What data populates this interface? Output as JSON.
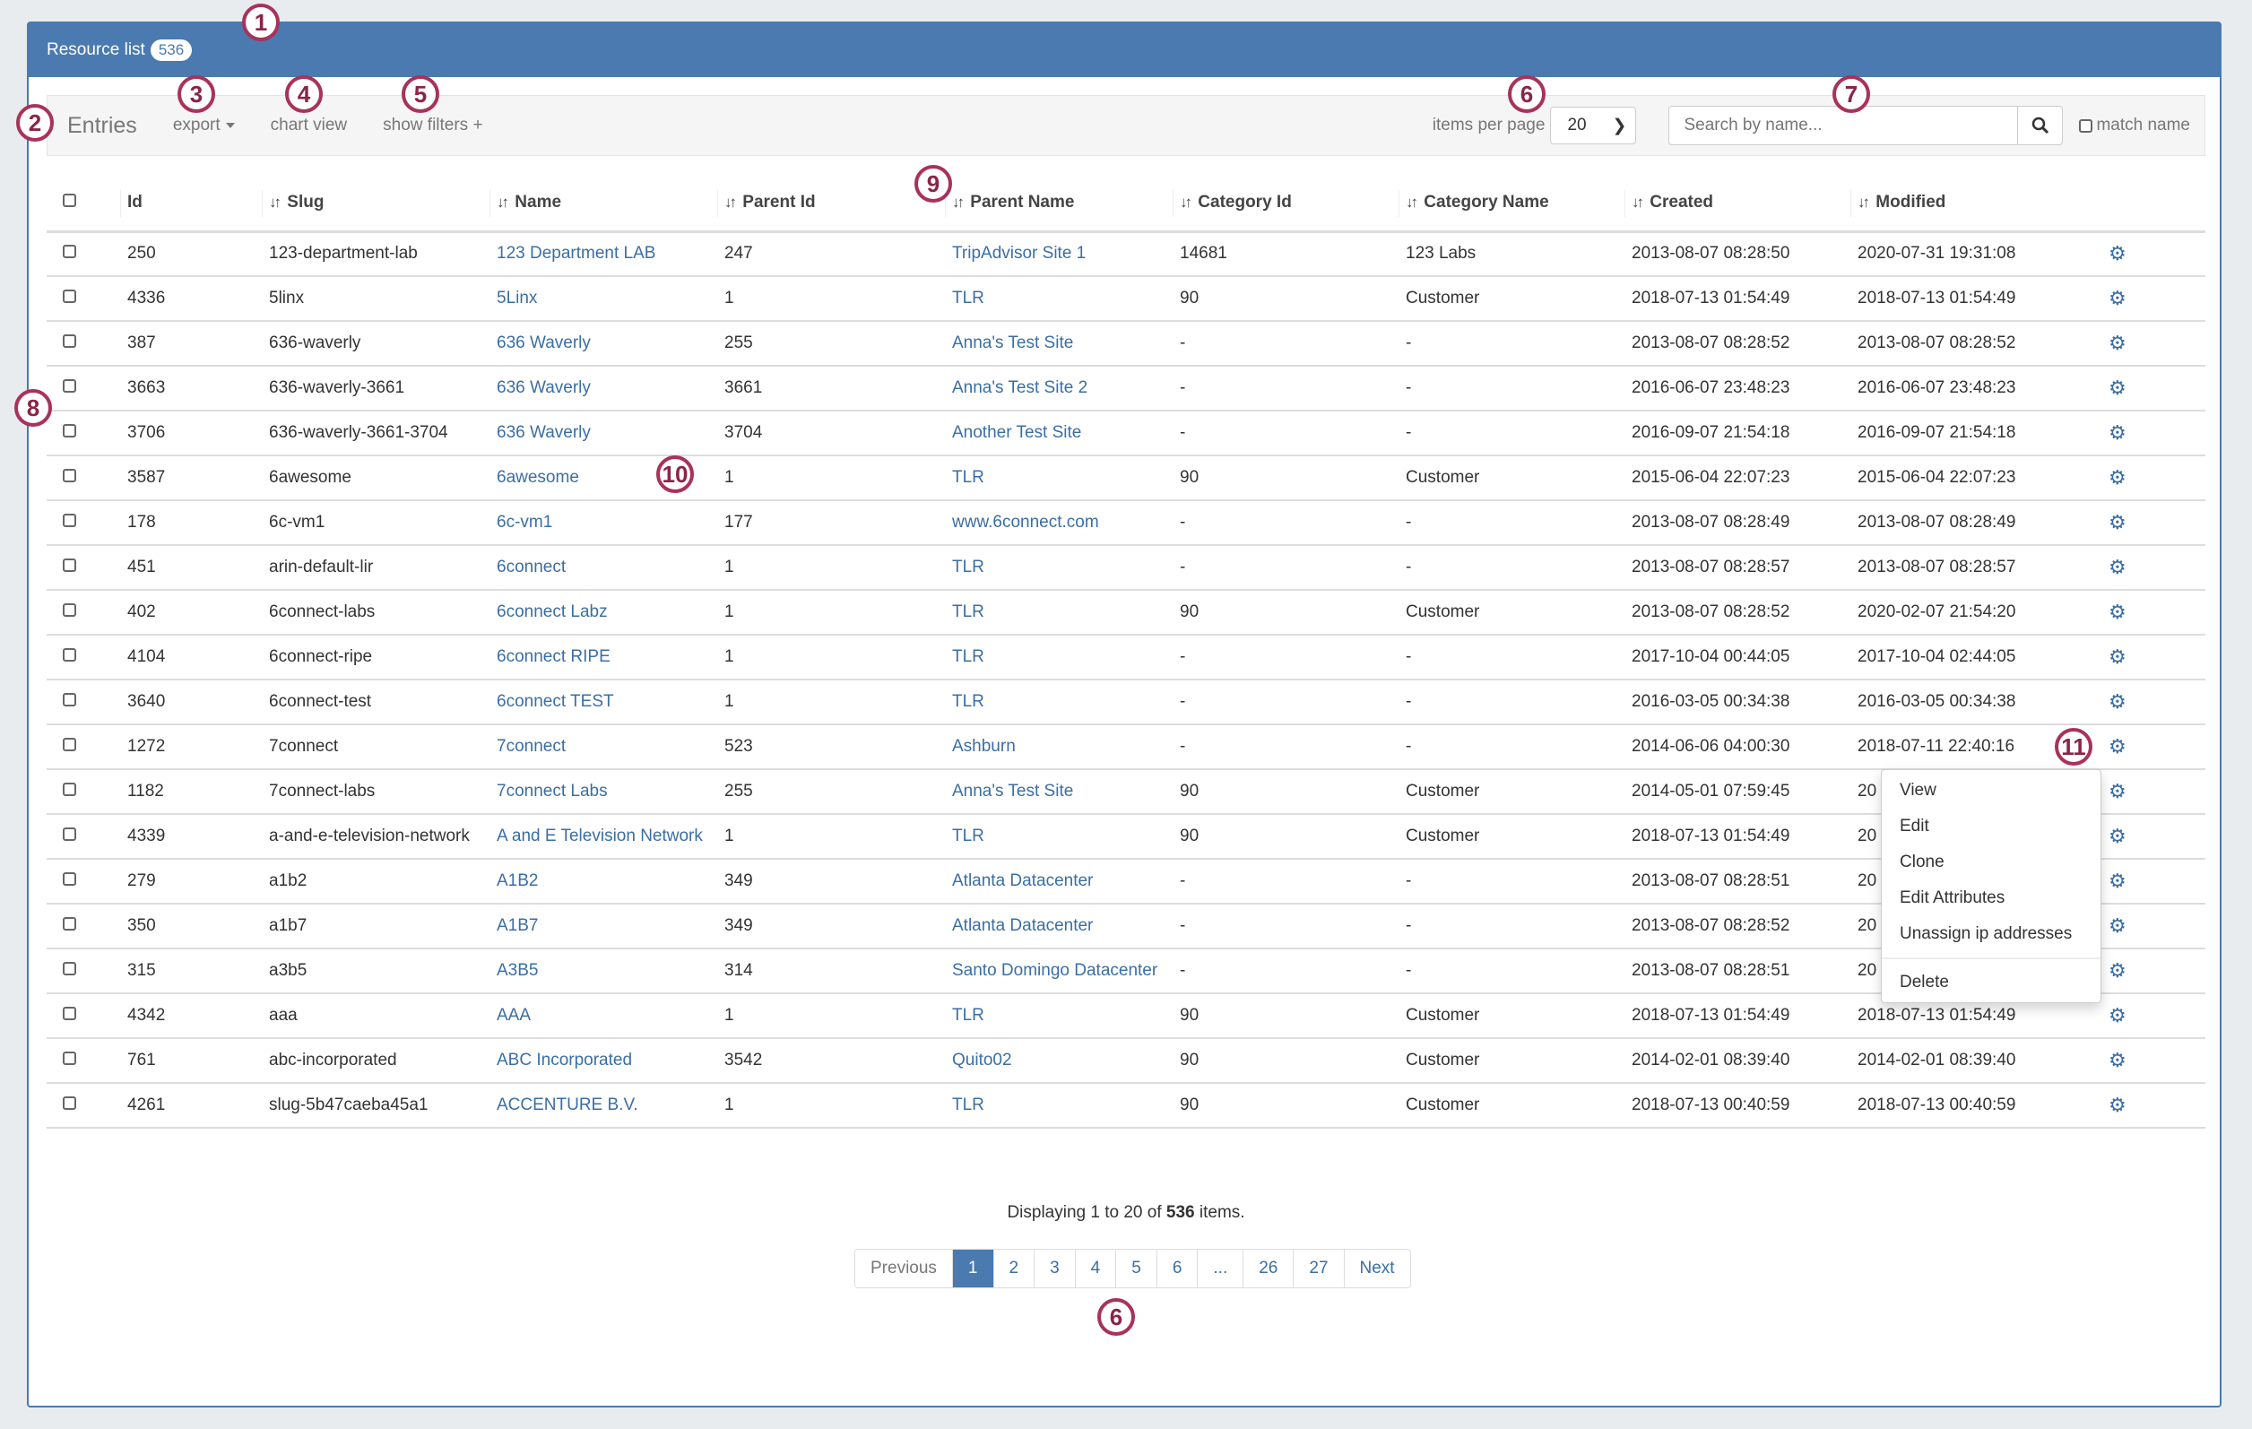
{
  "header": {
    "title": "Resource list",
    "count": "536"
  },
  "toolbar": {
    "entries": "Entries",
    "export": "export",
    "chart_view": "chart view",
    "show_filters": "show filters +",
    "items_per_page_label": "items per page",
    "items_per_page": "20",
    "search_placeholder": "Search by name...",
    "match_name": "match name"
  },
  "table": {
    "columns": [
      "Id",
      "Slug",
      "Name",
      "Parent Id",
      "Parent Name",
      "Category Id",
      "Category Name",
      "Created",
      "Modified"
    ],
    "rows": [
      [
        "250",
        "123-department-lab",
        "123 Department LAB",
        "247",
        "TripAdvisor Site 1",
        "14681",
        "123 Labs",
        "2013-08-07 08:28:50",
        "2020-07-31 19:31:08"
      ],
      [
        "4336",
        "5linx",
        "5Linx",
        "1",
        "TLR",
        "90",
        "Customer",
        "2018-07-13 01:54:49",
        "2018-07-13 01:54:49"
      ],
      [
        "387",
        "636-waverly",
        "636 Waverly",
        "255",
        "Anna's Test Site",
        "-",
        "-",
        "2013-08-07 08:28:52",
        "2013-08-07 08:28:52"
      ],
      [
        "3663",
        "636-waverly-3661",
        "636 Waverly",
        "3661",
        "Anna's Test Site 2",
        "-",
        "-",
        "2016-06-07 23:48:23",
        "2016-06-07 23:48:23"
      ],
      [
        "3706",
        "636-waverly-3661-3704",
        "636 Waverly",
        "3704",
        "Another Test Site",
        "-",
        "-",
        "2016-09-07 21:54:18",
        "2016-09-07 21:54:18"
      ],
      [
        "3587",
        "6awesome",
        "6awesome",
        "1",
        "TLR",
        "90",
        "Customer",
        "2015-06-04 22:07:23",
        "2015-06-04 22:07:23"
      ],
      [
        "178",
        "6c-vm1",
        "6c-vm1",
        "177",
        "www.6connect.com",
        "-",
        "-",
        "2013-08-07 08:28:49",
        "2013-08-07 08:28:49"
      ],
      [
        "451",
        "arin-default-lir",
        "6connect",
        "1",
        "TLR",
        "-",
        "-",
        "2013-08-07 08:28:57",
        "2013-08-07 08:28:57"
      ],
      [
        "402",
        "6connect-labs",
        "6connect Labz",
        "1",
        "TLR",
        "90",
        "Customer",
        "2013-08-07 08:28:52",
        "2020-02-07 21:54:20"
      ],
      [
        "4104",
        "6connect-ripe",
        "6connect RIPE",
        "1",
        "TLR",
        "-",
        "-",
        "2017-10-04 00:44:05",
        "2017-10-04 02:44:05"
      ],
      [
        "3640",
        "6connect-test",
        "6connect TEST",
        "1",
        "TLR",
        "-",
        "-",
        "2016-03-05 00:34:38",
        "2016-03-05 00:34:38"
      ],
      [
        "1272",
        "7connect",
        "7connect",
        "523",
        "Ashburn",
        "-",
        "-",
        "2014-06-06 04:00:30",
        "2018-07-11 22:40:16"
      ],
      [
        "1182",
        "7connect-labs",
        "7connect Labs",
        "255",
        "Anna's Test Site",
        "90",
        "Customer",
        "2014-05-01 07:59:45",
        "20"
      ],
      [
        "4339",
        "a-and-e-television-network",
        "A and E Television Network",
        "1",
        "TLR",
        "90",
        "Customer",
        "2018-07-13 01:54:49",
        "20"
      ],
      [
        "279",
        "a1b2",
        "A1B2",
        "349",
        "Atlanta Datacenter",
        "-",
        "-",
        "2013-08-07 08:28:51",
        "20"
      ],
      [
        "350",
        "a1b7",
        "A1B7",
        "349",
        "Atlanta Datacenter",
        "-",
        "-",
        "2013-08-07 08:28:52",
        "20"
      ],
      [
        "315",
        "a3b5",
        "A3B5",
        "314",
        "Santo Domingo Datacenter",
        "-",
        "-",
        "2013-08-07 08:28:51",
        "20"
      ],
      [
        "4342",
        "aaa",
        "AAA",
        "1",
        "TLR",
        "90",
        "Customer",
        "2018-07-13 01:54:49",
        "2018-07-13 01:54:49"
      ],
      [
        "761",
        "abc-incorporated",
        "ABC Incorporated",
        "3542",
        "Quito02",
        "90",
        "Customer",
        "2014-02-01 08:39:40",
        "2014-02-01 08:39:40"
      ],
      [
        "4261",
        "slug-5b47caeba45a1",
        "ACCENTURE B.V.",
        "1",
        "TLR",
        "90",
        "Customer",
        "2018-07-13 00:40:59",
        "2018-07-13 00:40:59"
      ]
    ]
  },
  "footer": {
    "display_prefix": "Displaying 1 to 20 of ",
    "display_total": "536",
    "display_suffix": " items."
  },
  "pagination": [
    "Previous",
    "1",
    "2",
    "3",
    "4",
    "5",
    "6",
    "...",
    "26",
    "27",
    "Next"
  ],
  "pagination_active": "1",
  "context_menu": [
    "View",
    "Edit",
    "Clone",
    "Edit Attributes",
    "Unassign ip addresses",
    "Delete"
  ],
  "annotations": [
    "1",
    "2",
    "3",
    "4",
    "5",
    "6",
    "7",
    "8",
    "9",
    "10",
    "11",
    "6"
  ],
  "colors": {
    "primary": "#4a7ab0",
    "link": "#3a6ea5",
    "annotation": "#a8325a"
  }
}
